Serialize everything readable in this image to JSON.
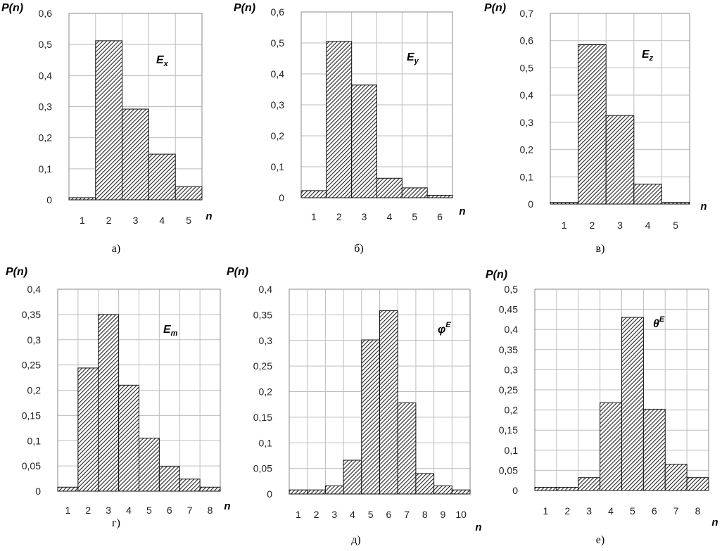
{
  "chart_data": [
    {
      "type": "bar",
      "ylabel": "P(n)",
      "xlabel": "n",
      "annotation": {
        "main": "E",
        "sub": "x",
        "sup": ""
      },
      "caption": "а)",
      "categories": [
        "1",
        "2",
        "3",
        "4",
        "5"
      ],
      "values": [
        0.007,
        0.512,
        0.292,
        0.147,
        0.042
      ],
      "ylim": [
        0,
        0.6
      ],
      "yticks": [
        0,
        0.1,
        0.2,
        0.3,
        0.4,
        0.5,
        0.6
      ],
      "ytick_labels": [
        "0",
        "0,1",
        "0,2",
        "0,3",
        "0,4",
        "0,5",
        "0,6"
      ],
      "grid": true,
      "legend": "none"
    },
    {
      "type": "bar",
      "ylabel": "P(n)",
      "xlabel": "n",
      "annotation": {
        "main": "E",
        "sub": "y",
        "sup": ""
      },
      "caption": "б)",
      "categories": [
        "1",
        "2",
        "3",
        "4",
        "5",
        "6"
      ],
      "values": [
        0.023,
        0.505,
        0.364,
        0.063,
        0.032,
        0.008
      ],
      "ylim": [
        0,
        0.6
      ],
      "yticks": [
        0,
        0.1,
        0.2,
        0.3,
        0.4,
        0.5,
        0.6
      ],
      "ytick_labels": [
        "0",
        "0,1",
        "0,2",
        "0,3",
        "0,4",
        "0,5",
        "0,6"
      ],
      "grid": true,
      "legend": "none"
    },
    {
      "type": "bar",
      "ylabel": "P(n)",
      "xlabel": "n",
      "annotation": {
        "main": "E",
        "sub": "z",
        "sup": ""
      },
      "caption": "в)",
      "categories": [
        "1",
        "2",
        "3",
        "4",
        "5"
      ],
      "values": [
        0.006,
        0.585,
        0.325,
        0.073,
        0.006
      ],
      "ylim": [
        0,
        0.7
      ],
      "yticks": [
        0,
        0.1,
        0.2,
        0.3,
        0.4,
        0.5,
        0.6,
        0.7
      ],
      "ytick_labels": [
        "0",
        "0,1",
        "0,2",
        "0,3",
        "0,4",
        "0,5",
        "0,6",
        "0,7"
      ],
      "grid": true,
      "legend": "none"
    },
    {
      "type": "bar",
      "ylabel": "P(n)",
      "xlabel": "n",
      "annotation": {
        "main": "E",
        "sub": "m",
        "sup": ""
      },
      "caption": "г)",
      "categories": [
        "1",
        "2",
        "3",
        "4",
        "5",
        "6",
        "7",
        "8"
      ],
      "values": [
        0.008,
        0.244,
        0.35,
        0.21,
        0.105,
        0.049,
        0.024,
        0.008
      ],
      "ylim": [
        0,
        0.4
      ],
      "yticks": [
        0,
        0.05,
        0.1,
        0.15,
        0.2,
        0.25,
        0.3,
        0.35,
        0.4
      ],
      "ytick_labels": [
        "0",
        "0,05",
        "0,1",
        "0,15",
        "0,2",
        "0,25",
        "0,3",
        "0,35",
        "0,4"
      ],
      "grid": true,
      "legend": "none"
    },
    {
      "type": "bar",
      "ylabel": "P(n)",
      "xlabel": "n",
      "annotation": {
        "main": "φ",
        "sub": "",
        "sup": "E"
      },
      "caption": "д)",
      "categories": [
        "1",
        "2",
        "3",
        "4",
        "5",
        "6",
        "7",
        "8",
        "9",
        "10"
      ],
      "values": [
        0.008,
        0.008,
        0.016,
        0.066,
        0.301,
        0.358,
        0.178,
        0.04,
        0.016,
        0.008
      ],
      "ylim": [
        0,
        0.4
      ],
      "yticks": [
        0,
        0.05,
        0.1,
        0.15,
        0.2,
        0.25,
        0.3,
        0.35,
        0.4
      ],
      "ytick_labels": [
        "0",
        "0,05",
        "0,1",
        "0,15",
        "0,2",
        "0,25",
        "0,3",
        "0,35",
        "0,4"
      ],
      "grid": true,
      "legend": "none"
    },
    {
      "type": "bar",
      "ylabel": "P(n)",
      "xlabel": "n",
      "annotation": {
        "main": "θ",
        "sub": "",
        "sup": "E"
      },
      "caption": "е)",
      "categories": [
        "1",
        "2",
        "3",
        "4",
        "5",
        "6",
        "7",
        "8"
      ],
      "values": [
        0.008,
        0.008,
        0.032,
        0.218,
        0.43,
        0.202,
        0.065,
        0.032
      ],
      "ylim": [
        0,
        0.5
      ],
      "yticks": [
        0,
        0.05,
        0.1,
        0.15,
        0.2,
        0.25,
        0.3,
        0.35,
        0.4,
        0.45,
        0.5
      ],
      "ytick_labels": [
        "0",
        "0,05",
        "0,1",
        "0,15",
        "0,2",
        "0,25",
        "0,3",
        "0,35",
        "0,4",
        "0,45",
        "0,5"
      ],
      "grid": true,
      "legend": "none"
    }
  ]
}
